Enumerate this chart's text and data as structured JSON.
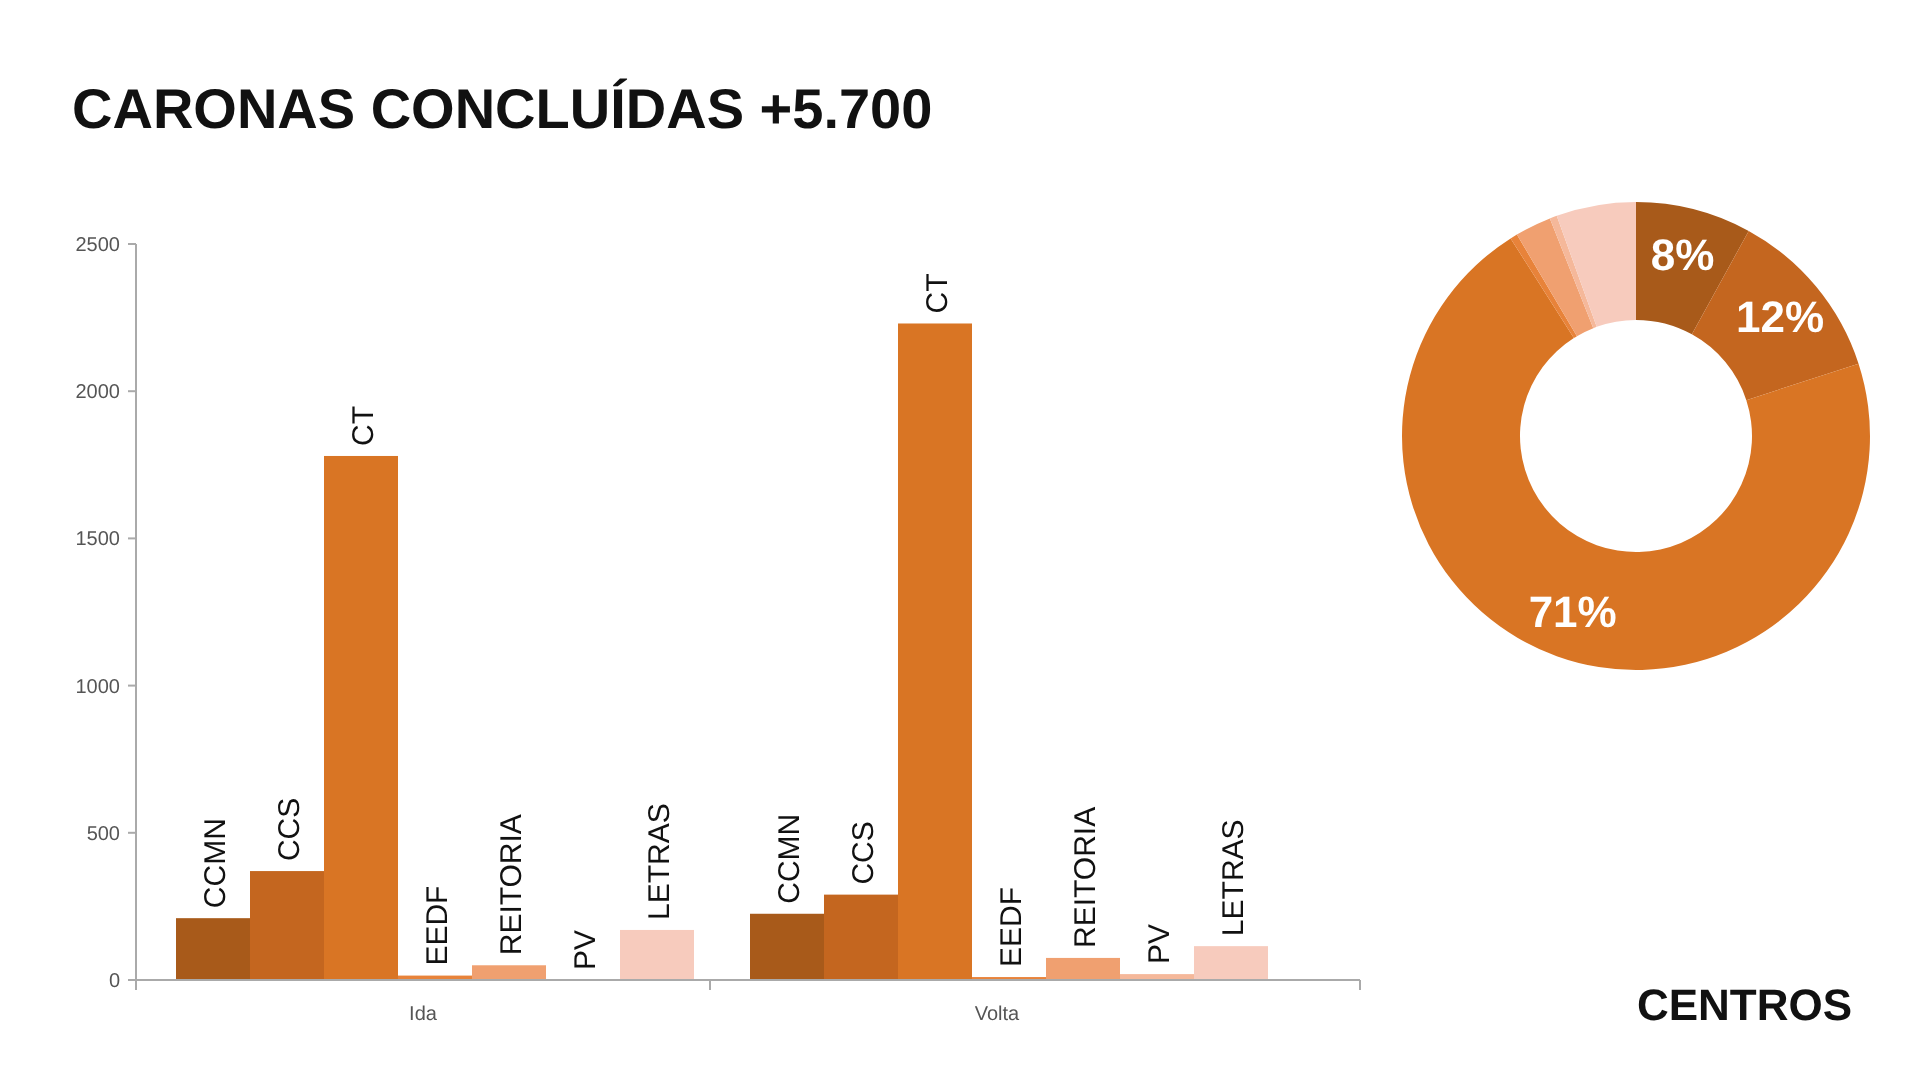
{
  "chart_data": [
    {
      "type": "bar",
      "title": "CARONAS CONCLUÍDAS +5.700",
      "categories": [
        "Ida",
        "Volta"
      ],
      "ylim": [
        0,
        2500
      ],
      "yticks": [
        0,
        500,
        1000,
        1500,
        2000,
        2500
      ],
      "grid": false,
      "series": [
        {
          "name": "CCMN",
          "color": "#a85a1a",
          "values": [
            210,
            225
          ]
        },
        {
          "name": "CCS",
          "color": "#c4661f",
          "values": [
            370,
            290
          ]
        },
        {
          "name": "CT",
          "color": "#d97524",
          "values": [
            1780,
            2230
          ]
        },
        {
          "name": "EEDF",
          "color": "#e8833a",
          "values": [
            15,
            10
          ]
        },
        {
          "name": "REITORIA",
          "color": "#f0a070",
          "values": [
            50,
            75
          ]
        },
        {
          "name": "PV",
          "color": "#f5b89a",
          "values": [
            0,
            20
          ]
        },
        {
          "name": "LETRAS",
          "color": "#f7cbbd",
          "values": [
            170,
            115
          ]
        }
      ]
    },
    {
      "type": "donut",
      "categories": [
        null,
        null,
        null,
        null,
        null,
        null,
        null
      ],
      "values": [
        8,
        12,
        71,
        0.5,
        2.5,
        0.5,
        5.5
      ],
      "value_labels": [
        "8%",
        "12%",
        "71%",
        null,
        null,
        null,
        null
      ],
      "colors": [
        "#a85a1a",
        "#c4661f",
        "#d97524",
        "#e8833a",
        "#f0a070",
        "#f5b89a",
        "#f7cbbd"
      ],
      "annotations": [
        "CENTROS"
      ]
    }
  ]
}
